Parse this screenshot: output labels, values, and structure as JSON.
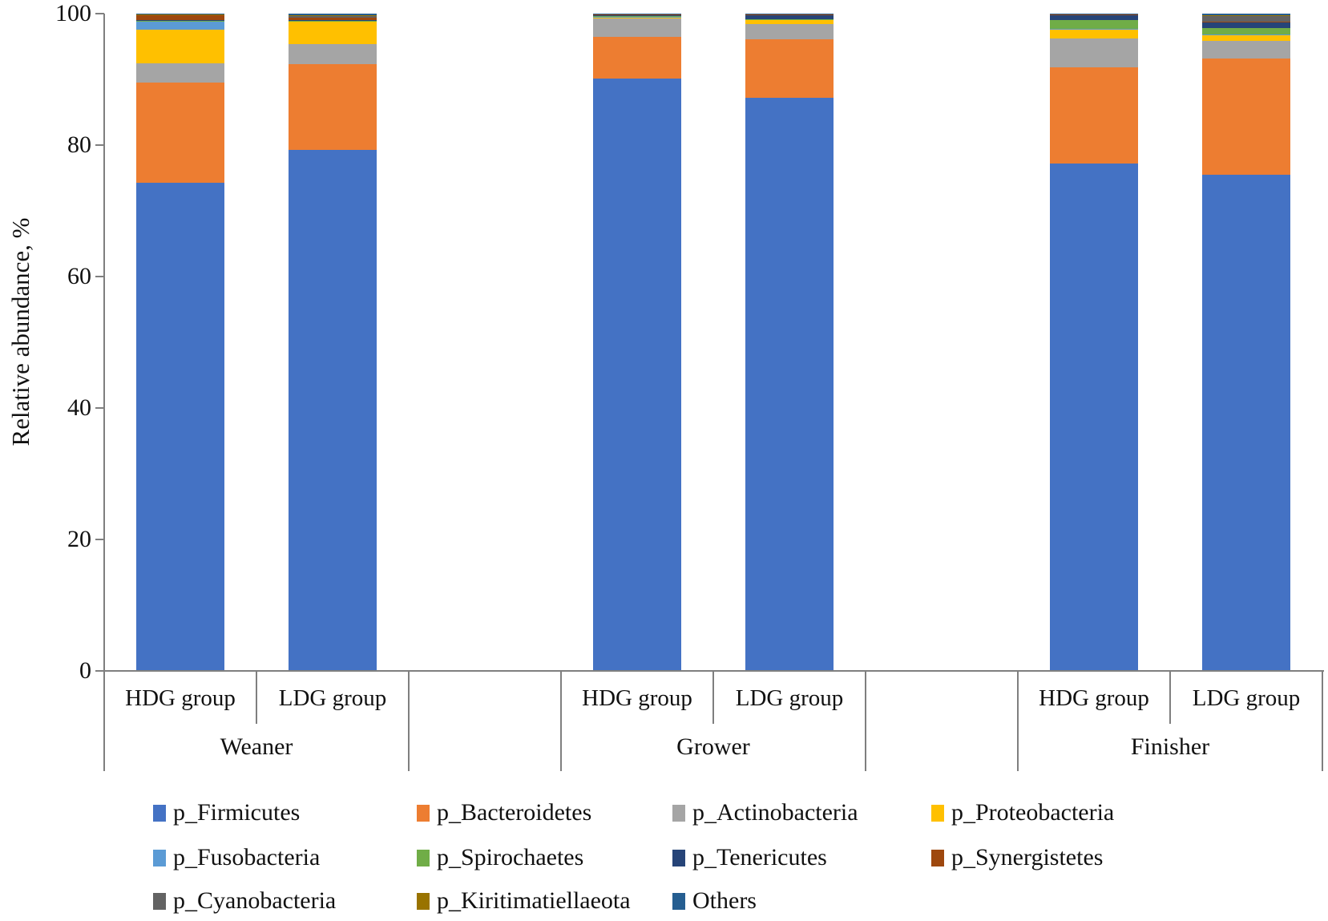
{
  "chart_data": {
    "type": "bar",
    "stacked": true,
    "title": "",
    "ylabel": "Relative abundance, %",
    "xlabel": "",
    "ylim": [
      0,
      100
    ],
    "yticks": [
      0,
      20,
      40,
      60,
      80,
      100
    ],
    "grid": false,
    "legend_position": "bottom",
    "groups": [
      {
        "label": "Weaner",
        "categories": [
          "HDG group",
          "LDG group"
        ]
      },
      {
        "label": "Grower",
        "categories": [
          "HDG group",
          "LDG group"
        ]
      },
      {
        "label": "Finisher",
        "categories": [
          "HDG group",
          "LDG group"
        ]
      }
    ],
    "series": [
      {
        "name": "p_Firmicutes",
        "color": "#4472C4",
        "values": [
          74.3,
          79.3,
          90.1,
          87.2,
          77.2,
          75.5
        ]
      },
      {
        "name": "p_Bacteroidetes",
        "color": "#ED7D31",
        "values": [
          15.2,
          13.0,
          6.4,
          8.9,
          14.6,
          17.7
        ]
      },
      {
        "name": "p_Actinobacteria",
        "color": "#A5A5A5",
        "values": [
          2.9,
          3.1,
          2.8,
          2.3,
          4.4,
          2.7
        ]
      },
      {
        "name": "p_Proteobacteria",
        "color": "#FFC000",
        "values": [
          5.2,
          3.4,
          0.2,
          0.7,
          1.4,
          0.9
        ]
      },
      {
        "name": "p_Fusobacteria",
        "color": "#5B9BD5",
        "values": [
          1.3,
          0.1,
          0.05,
          0.05,
          0.05,
          0.05
        ]
      },
      {
        "name": "p_Spirochaetes",
        "color": "#70AD47",
        "values": [
          0.05,
          0.05,
          0.05,
          0.05,
          1.4,
          1.0
        ]
      },
      {
        "name": "p_Tenericutes",
        "color": "#264478",
        "values": [
          0.1,
          0.1,
          0.2,
          0.6,
          0.8,
          0.9
        ]
      },
      {
        "name": "p_Synergistetes",
        "color": "#9E480E",
        "values": [
          0.8,
          0.35,
          0.05,
          0.05,
          0.05,
          0.05
        ]
      },
      {
        "name": "p_Cyanobacteria",
        "color": "#636363",
        "values": [
          0.05,
          0.3,
          0.1,
          0.1,
          0.05,
          0.9
        ]
      },
      {
        "name": "p_Kiritimatiellaeota",
        "color": "#997300",
        "values": [
          0.02,
          0.05,
          0.02,
          0.02,
          0.02,
          0.1
        ]
      },
      {
        "name": "Others",
        "color": "#255E91",
        "values": [
          0.08,
          0.25,
          0.03,
          0.03,
          0.03,
          0.2
        ]
      }
    ],
    "legend_rows": [
      [
        0,
        1,
        2,
        3
      ],
      [
        4,
        5,
        6,
        7
      ],
      [
        8,
        9,
        10
      ]
    ]
  }
}
